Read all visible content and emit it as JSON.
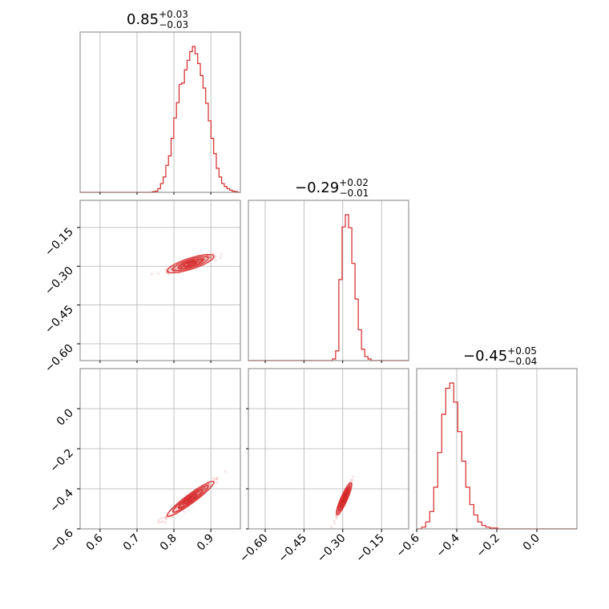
{
  "chart_data": {
    "type": "corner",
    "color": "#d62728",
    "params": [
      {
        "title": {
          "main": "0.85",
          "sup": "+0.03",
          "sub": "−0.03"
        },
        "range": [
          0.546,
          0.98
        ],
        "ticks": [
          0.6,
          0.7,
          0.8,
          0.9
        ],
        "tick_labels": [
          "0.6",
          "0.7",
          "0.8",
          "0.9"
        ],
        "hist": {
          "start": 0.742,
          "width": 0.0072,
          "counts": [
            2,
            3,
            10,
            24,
            42,
            74,
            100,
            148,
            204,
            246,
            296,
            300,
            336,
            362,
            386,
            400,
            380,
            353,
            320,
            286,
            244,
            196,
            148,
            106,
            66,
            42,
            24,
            16,
            10,
            6,
            3,
            2
          ]
        }
      },
      {
        "title": {
          "main": "−0.29",
          "sup": "+0.02",
          "sub": "−0.01"
        },
        "range": [
          -0.665,
          -0.045
        ],
        "ticks": [
          -0.6,
          -0.45,
          -0.3,
          -0.15
        ],
        "tick_labels": [
          "−0.60",
          "−0.45",
          "−0.30",
          "−0.15"
        ],
        "hist": {
          "start": -0.34,
          "width": 0.0125,
          "counts": [
            2,
            12,
            100,
            165,
            180,
            164,
            120,
            76,
            38,
            14,
            5,
            2
          ]
        }
      },
      {
        "title": {
          "main": "−0.45",
          "sup": "+0.05",
          "sub": "−0.04"
        },
        "range": [
          -0.6,
          0.2
        ],
        "ticks": [
          -0.6,
          -0.4,
          -0.2,
          0.0
        ],
        "tick_labels": [
          "−0.6",
          "−0.4",
          "−0.2",
          "0.0"
        ],
        "hist": {
          "start": -0.575,
          "width": 0.02,
          "counts": [
            2,
            8,
            20,
            48,
            88,
            132,
            162,
            168,
            146,
            112,
            78,
            48,
            28,
            16,
            8,
            4,
            2,
            1,
            1
          ]
        }
      }
    ],
    "scatter_pairs": [
      {
        "x_param": 0,
        "y_param": 1,
        "center": [
          0.845,
          -0.29
        ],
        "slope": 0.46,
        "spread_x": 0.03,
        "spread_perp": 0.007
      },
      {
        "x_param": 0,
        "y_param": 2,
        "center": [
          0.845,
          -0.45
        ],
        "slope": 1.36,
        "spread_x": 0.03,
        "spread_perp": 0.01
      },
      {
        "x_param": 1,
        "y_param": 2,
        "center": [
          -0.295,
          -0.45
        ],
        "slope": 2.9,
        "spread_x": 0.013,
        "spread_perp": 0.009
      }
    ]
  }
}
